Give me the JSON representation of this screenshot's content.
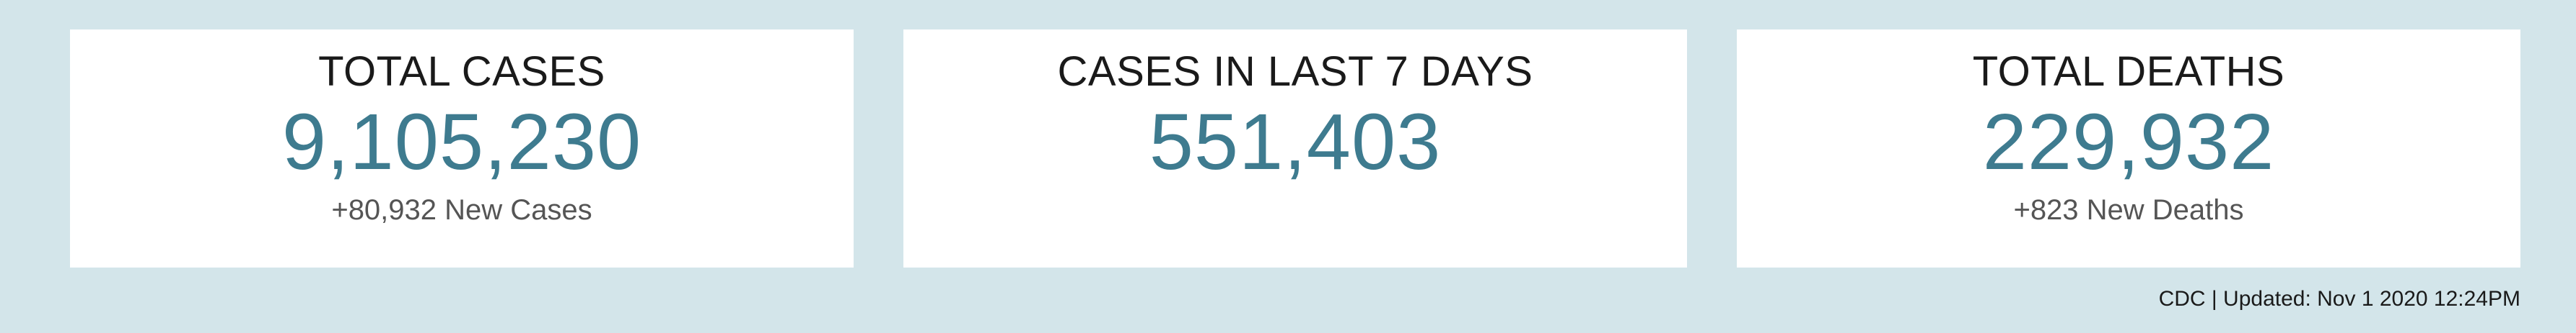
{
  "cards": [
    {
      "title": "TOTAL CASES",
      "value": "9,105,230",
      "sub": "+80,932 New Cases"
    },
    {
      "title": "CASES IN LAST 7 DAYS",
      "value": "551,403",
      "sub": ""
    },
    {
      "title": "TOTAL DEATHS",
      "value": "229,932",
      "sub": "+823 New Deaths"
    }
  ],
  "footer": {
    "text": "CDC | Updated: Nov 1 2020 12:24PM"
  },
  "colors": {
    "background": "#d3e5ea",
    "card": "#ffffff",
    "value": "#3e7b8f",
    "title": "#1a1a1a",
    "subtext": "#555555"
  }
}
